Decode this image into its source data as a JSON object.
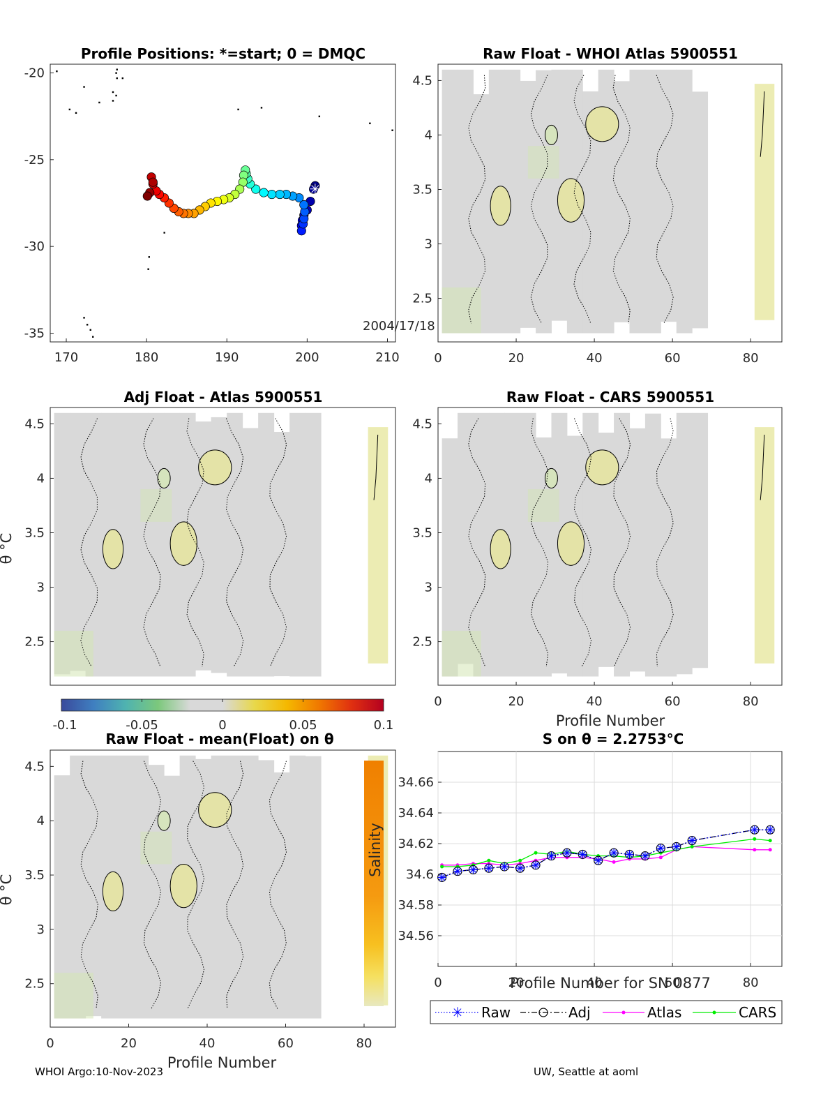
{
  "colors": {
    "axis": "#262626",
    "grid": "#dcdcdc",
    "raw": "#0000ff",
    "adj": "#000000",
    "atlas": "#ff00ff",
    "cars": "#00ee00",
    "field_neutral": "#d9d9d9",
    "field_positive": "#e6e59a",
    "field_negative": "#d4e6b5"
  },
  "footer": {
    "left": "WHOI Argo:10-Nov-2023",
    "right": "UW, Seattle at aoml"
  },
  "colorbar": {
    "ticks": [
      "-0.1",
      "-0.05",
      "0",
      "0.05",
      "0.1"
    ],
    "stops": [
      "#3a4a9c",
      "#3f7fc0",
      "#4fb3b0",
      "#7cc87c",
      "#d9d9d9",
      "#d9d9d9",
      "#e8d84a",
      "#f5b800",
      "#f07800",
      "#e03010",
      "#b40020"
    ]
  },
  "chart_data": [
    {
      "id": "map",
      "type": "scatter",
      "title": "Profile Positions: *=start; 0 = DMQC",
      "xlim": [
        168,
        211
      ],
      "ylim": [
        -35.5,
        -19.5
      ],
      "xticks": [
        "170",
        "180",
        "190",
        "200",
        "210"
      ],
      "yticks": [
        "-20",
        "-25",
        "-30",
        "-35"
      ],
      "annotation": "2004/17/18",
      "start_marker": [
        201.0,
        -26.7
      ],
      "track": [
        [
          201.0,
          -26.5
        ],
        [
          200.8,
          -26.7
        ],
        [
          200.4,
          -27.4
        ],
        [
          200.0,
          -27.9
        ],
        [
          199.6,
          -28.2
        ],
        [
          199.4,
          -28.5
        ],
        [
          199.3,
          -28.8
        ],
        [
          199.3,
          -29.1
        ],
        [
          199.5,
          -28.7
        ],
        [
          199.6,
          -28.4
        ],
        [
          199.7,
          -28.0
        ],
        [
          199.6,
          -27.6
        ],
        [
          199.0,
          -27.2
        ],
        [
          198.2,
          -27.1
        ],
        [
          197.4,
          -27.0
        ],
        [
          196.6,
          -27.0
        ],
        [
          195.6,
          -27.0
        ],
        [
          194.6,
          -26.9
        ],
        [
          193.6,
          -26.7
        ],
        [
          192.9,
          -26.4
        ],
        [
          192.6,
          -26.1
        ],
        [
          192.4,
          -25.8
        ],
        [
          192.3,
          -25.6
        ],
        [
          192.1,
          -25.9
        ],
        [
          192.0,
          -26.3
        ],
        [
          191.6,
          -26.7
        ],
        [
          191.0,
          -27.0
        ],
        [
          190.3,
          -27.2
        ],
        [
          189.6,
          -27.3
        ],
        [
          188.8,
          -27.4
        ],
        [
          188.0,
          -27.5
        ],
        [
          187.3,
          -27.7
        ],
        [
          186.6,
          -27.9
        ],
        [
          185.9,
          -28.1
        ],
        [
          185.2,
          -28.1
        ],
        [
          184.6,
          -28.1
        ],
        [
          184.0,
          -28.0
        ],
        [
          183.4,
          -27.8
        ],
        [
          182.8,
          -27.5
        ],
        [
          182.2,
          -27.2
        ],
        [
          181.6,
          -27.0
        ],
        [
          181.2,
          -26.8
        ],
        [
          180.8,
          -26.4
        ],
        [
          180.6,
          -26.0
        ],
        [
          180.8,
          -26.3
        ],
        [
          180.4,
          -26.9
        ],
        [
          180.1,
          -27.1
        ]
      ],
      "coast_points": [
        [
          168.8,
          -19.9
        ],
        [
          176.3,
          -19.8
        ],
        [
          176.2,
          -20.0
        ],
        [
          176.3,
          -20.3
        ],
        [
          172.2,
          -20.8
        ],
        [
          177.0,
          -20.3
        ],
        [
          175.8,
          -21.1
        ],
        [
          175.8,
          -21.6
        ],
        [
          176.2,
          -21.3
        ],
        [
          174.1,
          -21.7
        ],
        [
          170.4,
          -22.1
        ],
        [
          171.2,
          -22.3
        ],
        [
          191.4,
          -22.1
        ],
        [
          194.3,
          -22.0
        ],
        [
          201.5,
          -22.5
        ],
        [
          207.8,
          -22.9
        ],
        [
          210.6,
          -23.3
        ],
        [
          182.2,
          -29.2
        ],
        [
          180.3,
          -30.6
        ],
        [
          180.2,
          -31.3
        ],
        [
          172.2,
          -34.1
        ],
        [
          172.6,
          -34.5
        ],
        [
          173.0,
          -34.8
        ],
        [
          173.3,
          -35.2
        ]
      ]
    },
    {
      "id": "raw_whoi",
      "type": "heatmap",
      "title": "Raw Float - WHOI Atlas  5900551",
      "xlim": [
        0,
        88
      ],
      "ylim": [
        2.1,
        4.65
      ],
      "xticks": [
        "0",
        "20",
        "40",
        "60",
        "80"
      ],
      "yticks": [
        "4.5",
        "4",
        "3.5",
        "3",
        "2.5"
      ],
      "data_columns": [
        [
          1,
          66,
          2.18,
          4.6
        ],
        [
          81,
          86,
          2.3,
          4.47
        ]
      ]
    },
    {
      "id": "adj_atlas",
      "type": "heatmap",
      "title": "Adj Float - Atlas  5900551",
      "ylabel": "θ °C",
      "xlim": [
        0,
        88
      ],
      "ylim": [
        2.1,
        4.65
      ],
      "yticks": [
        "4.5",
        "4",
        "3.5",
        "3",
        "2.5"
      ],
      "data_columns": [
        [
          1,
          66,
          2.18,
          4.6
        ],
        [
          81,
          86,
          2.3,
          4.47
        ]
      ]
    },
    {
      "id": "raw_cars",
      "type": "heatmap",
      "title": "Raw Float - CARS  5900551",
      "xlabel": "Profile Number",
      "xlim": [
        0,
        88
      ],
      "ylim": [
        2.1,
        4.65
      ],
      "xticks": [
        "0",
        "20",
        "40",
        "60",
        "80"
      ],
      "yticks": [
        "4.5",
        "4",
        "3.5",
        "3",
        "2.5"
      ],
      "data_columns": [
        [
          1,
          66,
          2.18,
          4.6
        ],
        [
          81,
          86,
          2.3,
          4.47
        ]
      ]
    },
    {
      "id": "raw_mean",
      "type": "heatmap",
      "title": "Raw Float - mean(Float) on θ",
      "xlabel": "Profile Number",
      "ylabel": "θ °C",
      "side_label": "Salinity",
      "xlim": [
        0,
        88
      ],
      "ylim": [
        2.1,
        4.65
      ],
      "xticks": [
        "0",
        "20",
        "40",
        "60",
        "80"
      ],
      "yticks": [
        "4.5",
        "4",
        "3.5",
        "3",
        "2.5"
      ],
      "data_columns": [
        [
          1,
          66,
          2.18,
          4.6
        ],
        [
          81,
          86,
          2.3,
          4.6
        ]
      ]
    },
    {
      "id": "s_on_theta",
      "type": "line",
      "title": "S on θ = 2.2753°C",
      "xlabel": "Profile Number for SN 0877",
      "xlim": [
        0,
        88
      ],
      "ylim": [
        34.54,
        34.68
      ],
      "xticks": [
        "0",
        "20",
        "40",
        "60",
        "80"
      ],
      "yticks": [
        "34.66",
        "34.64",
        "34.62",
        "34.6",
        "34.58",
        "34.56"
      ],
      "legend": [
        "Raw",
        "Adj",
        "Atlas",
        "CARS"
      ],
      "x": [
        1,
        5,
        9,
        13,
        17,
        21,
        25,
        29,
        33,
        37,
        41,
        45,
        49,
        53,
        57,
        61,
        65,
        81,
        85
      ],
      "series": [
        {
          "name": "Raw",
          "values": [
            34.598,
            34.602,
            34.603,
            34.604,
            34.605,
            34.604,
            34.606,
            34.612,
            34.614,
            34.613,
            34.609,
            34.614,
            34.613,
            34.612,
            34.617,
            34.618,
            34.622,
            34.629,
            34.629
          ]
        },
        {
          "name": "Adj",
          "values": [
            34.598,
            34.602,
            34.603,
            34.604,
            34.605,
            34.604,
            34.606,
            34.612,
            34.614,
            34.613,
            34.609,
            34.614,
            34.613,
            34.612,
            34.617,
            34.618,
            34.622,
            34.629,
            34.629
          ]
        },
        {
          "name": "Atlas",
          "values": [
            34.606,
            34.606,
            34.607,
            34.607,
            34.606,
            34.607,
            34.609,
            34.611,
            34.611,
            34.611,
            34.61,
            34.608,
            34.61,
            34.61,
            34.611,
            34.616,
            34.618,
            34.616,
            34.616
          ]
        },
        {
          "name": "CARS",
          "values": [
            34.605,
            34.605,
            34.606,
            34.609,
            34.607,
            34.609,
            34.614,
            34.613,
            34.615,
            34.613,
            34.612,
            34.612,
            34.611,
            34.612,
            34.614,
            34.616,
            34.618,
            34.623,
            34.622
          ]
        }
      ]
    }
  ]
}
